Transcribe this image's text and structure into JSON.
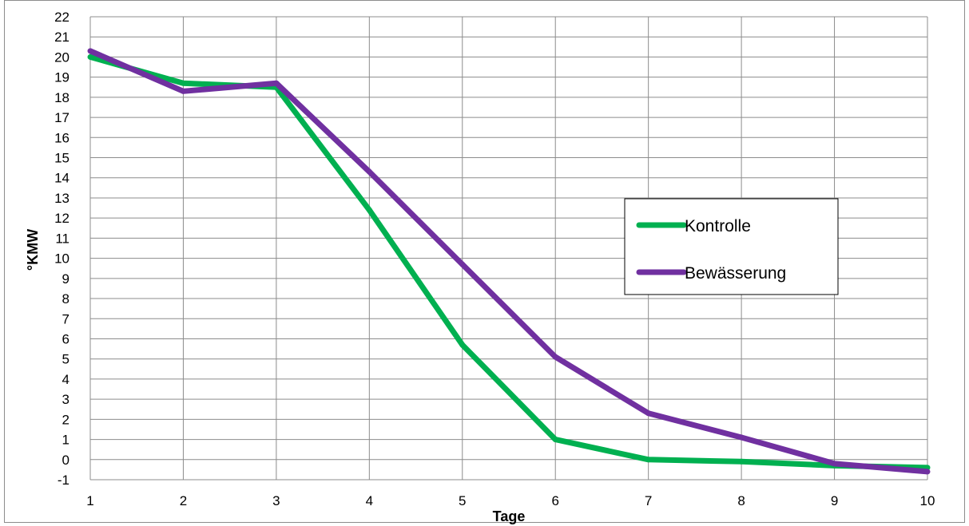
{
  "chart_data": {
    "type": "line",
    "xlabel": "Tage",
    "ylabel": "°KMW",
    "x": [
      1,
      2,
      3,
      4,
      5,
      6,
      7,
      8,
      9,
      10
    ],
    "xlim": [
      1,
      10
    ],
    "ylim": [
      -1,
      22
    ],
    "yticks": [
      -1,
      0,
      1,
      2,
      3,
      4,
      5,
      6,
      7,
      8,
      9,
      10,
      11,
      12,
      13,
      14,
      15,
      16,
      17,
      18,
      19,
      20,
      21,
      22
    ],
    "grid": true,
    "legend_position": "right",
    "series": [
      {
        "name": "Kontrolle",
        "color": "#00b050",
        "values": [
          20.0,
          18.7,
          18.5,
          12.4,
          5.7,
          1.0,
          0.0,
          -0.1,
          -0.3,
          -0.4
        ]
      },
      {
        "name": "Bewässerung",
        "color": "#7030a0",
        "values": [
          20.3,
          18.3,
          18.7,
          14.3,
          9.7,
          5.1,
          2.3,
          1.1,
          -0.2,
          -0.6
        ]
      }
    ]
  }
}
